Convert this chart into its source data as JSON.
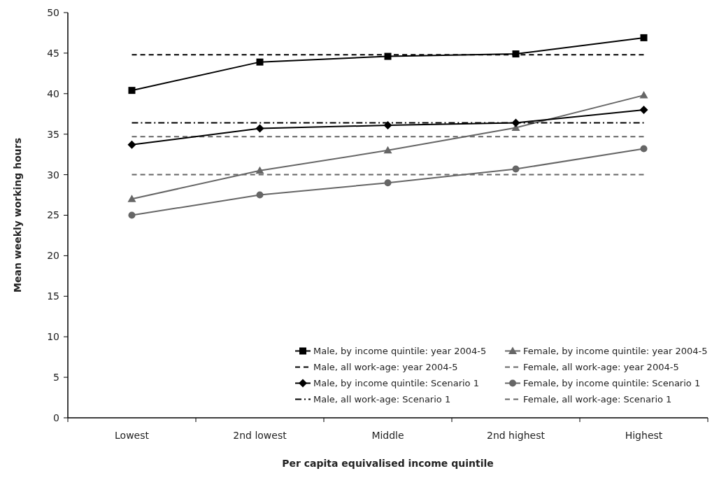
{
  "chart_data": {
    "type": "line",
    "xlabel": "Per capita equivalised income quintile",
    "ylabel": "Mean weekly working hours",
    "categories": [
      "Lowest",
      "2nd lowest",
      "Middle",
      "2nd highest",
      "Highest"
    ],
    "ylim": [
      0,
      50
    ],
    "yticks": [
      0,
      5,
      10,
      15,
      20,
      25,
      30,
      35,
      40,
      45,
      50
    ],
    "grid": false,
    "legend": "bottom right",
    "series": [
      {
        "name": "Male, by income quintile: year 2004-5",
        "color": "#000000",
        "marker": "square",
        "line_style": "solid",
        "values": [
          40.4,
          43.9,
          44.6,
          44.9,
          46.9
        ]
      },
      {
        "name": "Female, by income quintile: year 2004-5",
        "color": "#666666",
        "marker": "triangle",
        "line_style": "solid",
        "values": [
          27.0,
          30.5,
          33.0,
          35.8,
          39.8
        ]
      },
      {
        "name": "Male, all work-age: year 2004-5",
        "color": "#000000",
        "marker": "none",
        "line_style": "dashed",
        "values": [
          44.8,
          44.8,
          44.8,
          44.8,
          44.8
        ]
      },
      {
        "name": "Female, all work-age: year 2004-5",
        "color": "#666666",
        "marker": "none",
        "line_style": "dashed",
        "values": [
          34.7,
          34.7,
          34.7,
          34.7,
          34.7
        ]
      },
      {
        "name": "Male, by income quintile: Scenario 1",
        "color": "#000000",
        "marker": "diamond",
        "line_style": "solid",
        "values": [
          33.7,
          35.7,
          36.1,
          36.4,
          38.0
        ]
      },
      {
        "name": "Female, by income quintile: Scenario 1",
        "color": "#666666",
        "marker": "circle",
        "line_style": "solid",
        "values": [
          25.0,
          27.5,
          29.0,
          30.7,
          33.2
        ]
      },
      {
        "name": "Male, all work-age: Scenario 1",
        "color": "#000000",
        "marker": "none",
        "line_style": "dashdot",
        "values": [
          36.4,
          36.4,
          36.4,
          36.4,
          36.4
        ]
      },
      {
        "name": "Female, all work-age: Scenario 1",
        "color": "#666666",
        "marker": "none",
        "line_style": "dashed",
        "values": [
          30.0,
          30.0,
          30.0,
          30.0,
          30.0
        ]
      }
    ]
  }
}
